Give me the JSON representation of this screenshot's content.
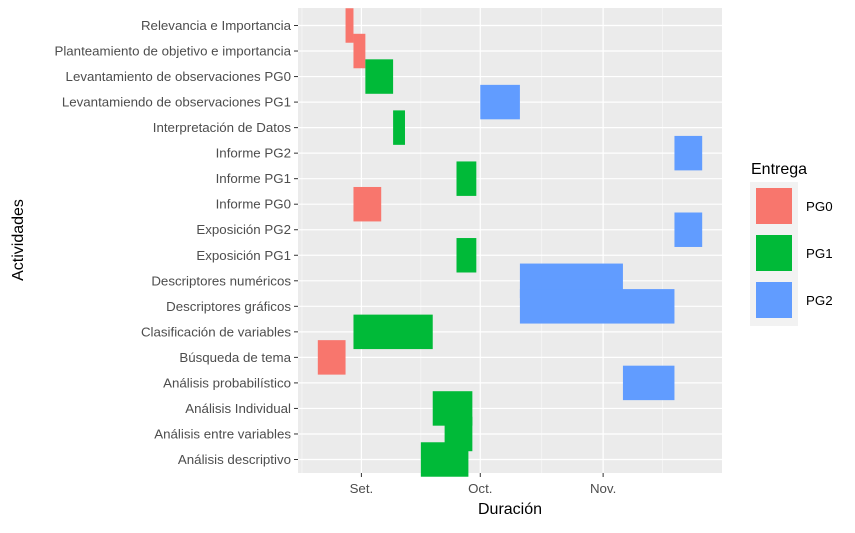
{
  "chart_data": {
    "type": "gantt",
    "xlabel": "Duración",
    "ylabel": "Actividades",
    "x_ticks": [
      {
        "label": "Set.",
        "date": "2021-09-01"
      },
      {
        "label": "Oct.",
        "date": "2021-10-01"
      },
      {
        "label": "Nov.",
        "date": "2021-11-01"
      }
    ],
    "x_range": [
      "2021-08-16",
      "2021-12-01"
    ],
    "grid": true,
    "legend": {
      "title": "Entrega",
      "position": "right",
      "entries": [
        {
          "name": "PG0",
          "color": "#F8766D"
        },
        {
          "name": "PG1",
          "color": "#00BA38"
        },
        {
          "name": "PG2",
          "color": "#619CFF"
        }
      ]
    },
    "activities": [
      {
        "name": "Relevancia e Importancia",
        "group": "PG0",
        "start": "2021-08-28",
        "end": "2021-08-30"
      },
      {
        "name": "Planteamiento de objetivo e importancia",
        "group": "PG0",
        "start": "2021-08-30",
        "end": "2021-09-02"
      },
      {
        "name": "Levantamiento de observaciones PG0",
        "group": "PG1",
        "start": "2021-09-02",
        "end": "2021-09-09"
      },
      {
        "name": "Levantamiendo de observaciones PG1",
        "group": "PG2",
        "start": "2021-10-01",
        "end": "2021-10-11"
      },
      {
        "name": "Interpretación de Datos",
        "group": "PG1",
        "start": "2021-09-09",
        "end": "2021-09-12"
      },
      {
        "name": "Informe PG2",
        "group": "PG2",
        "start": "2021-11-19",
        "end": "2021-11-26"
      },
      {
        "name": "Informe PG1",
        "group": "PG1",
        "start": "2021-09-25",
        "end": "2021-09-30"
      },
      {
        "name": "Informe PG0",
        "group": "PG0",
        "start": "2021-08-30",
        "end": "2021-09-06"
      },
      {
        "name": "Exposición PG2",
        "group": "PG2",
        "start": "2021-11-19",
        "end": "2021-11-26"
      },
      {
        "name": "Exposición PG1",
        "group": "PG1",
        "start": "2021-09-25",
        "end": "2021-09-30"
      },
      {
        "name": "Descriptores numéricos",
        "group": "PG2",
        "start": "2021-10-11",
        "end": "2021-11-06"
      },
      {
        "name": "Descriptores gráficos",
        "group": "PG2",
        "start": "2021-10-11",
        "end": "2021-11-19"
      },
      {
        "name": "Clasificación de variables",
        "group": "PG1",
        "start": "2021-08-30",
        "end": "2021-09-19"
      },
      {
        "name": "Búsqueda de tema",
        "group": "PG0",
        "start": "2021-08-21",
        "end": "2021-08-28"
      },
      {
        "name": "Análisis probabilístico",
        "group": "PG2",
        "start": "2021-11-06",
        "end": "2021-11-19"
      },
      {
        "name": "Análisis Individual",
        "group": "PG1",
        "start": "2021-09-19",
        "end": "2021-09-29"
      },
      {
        "name": "Análisis entre variables",
        "group": "PG1",
        "start": "2021-09-22",
        "end": "2021-09-29"
      },
      {
        "name": "Análisis descriptivo",
        "group": "PG1",
        "start": "2021-09-16",
        "end": "2021-09-28"
      }
    ]
  }
}
